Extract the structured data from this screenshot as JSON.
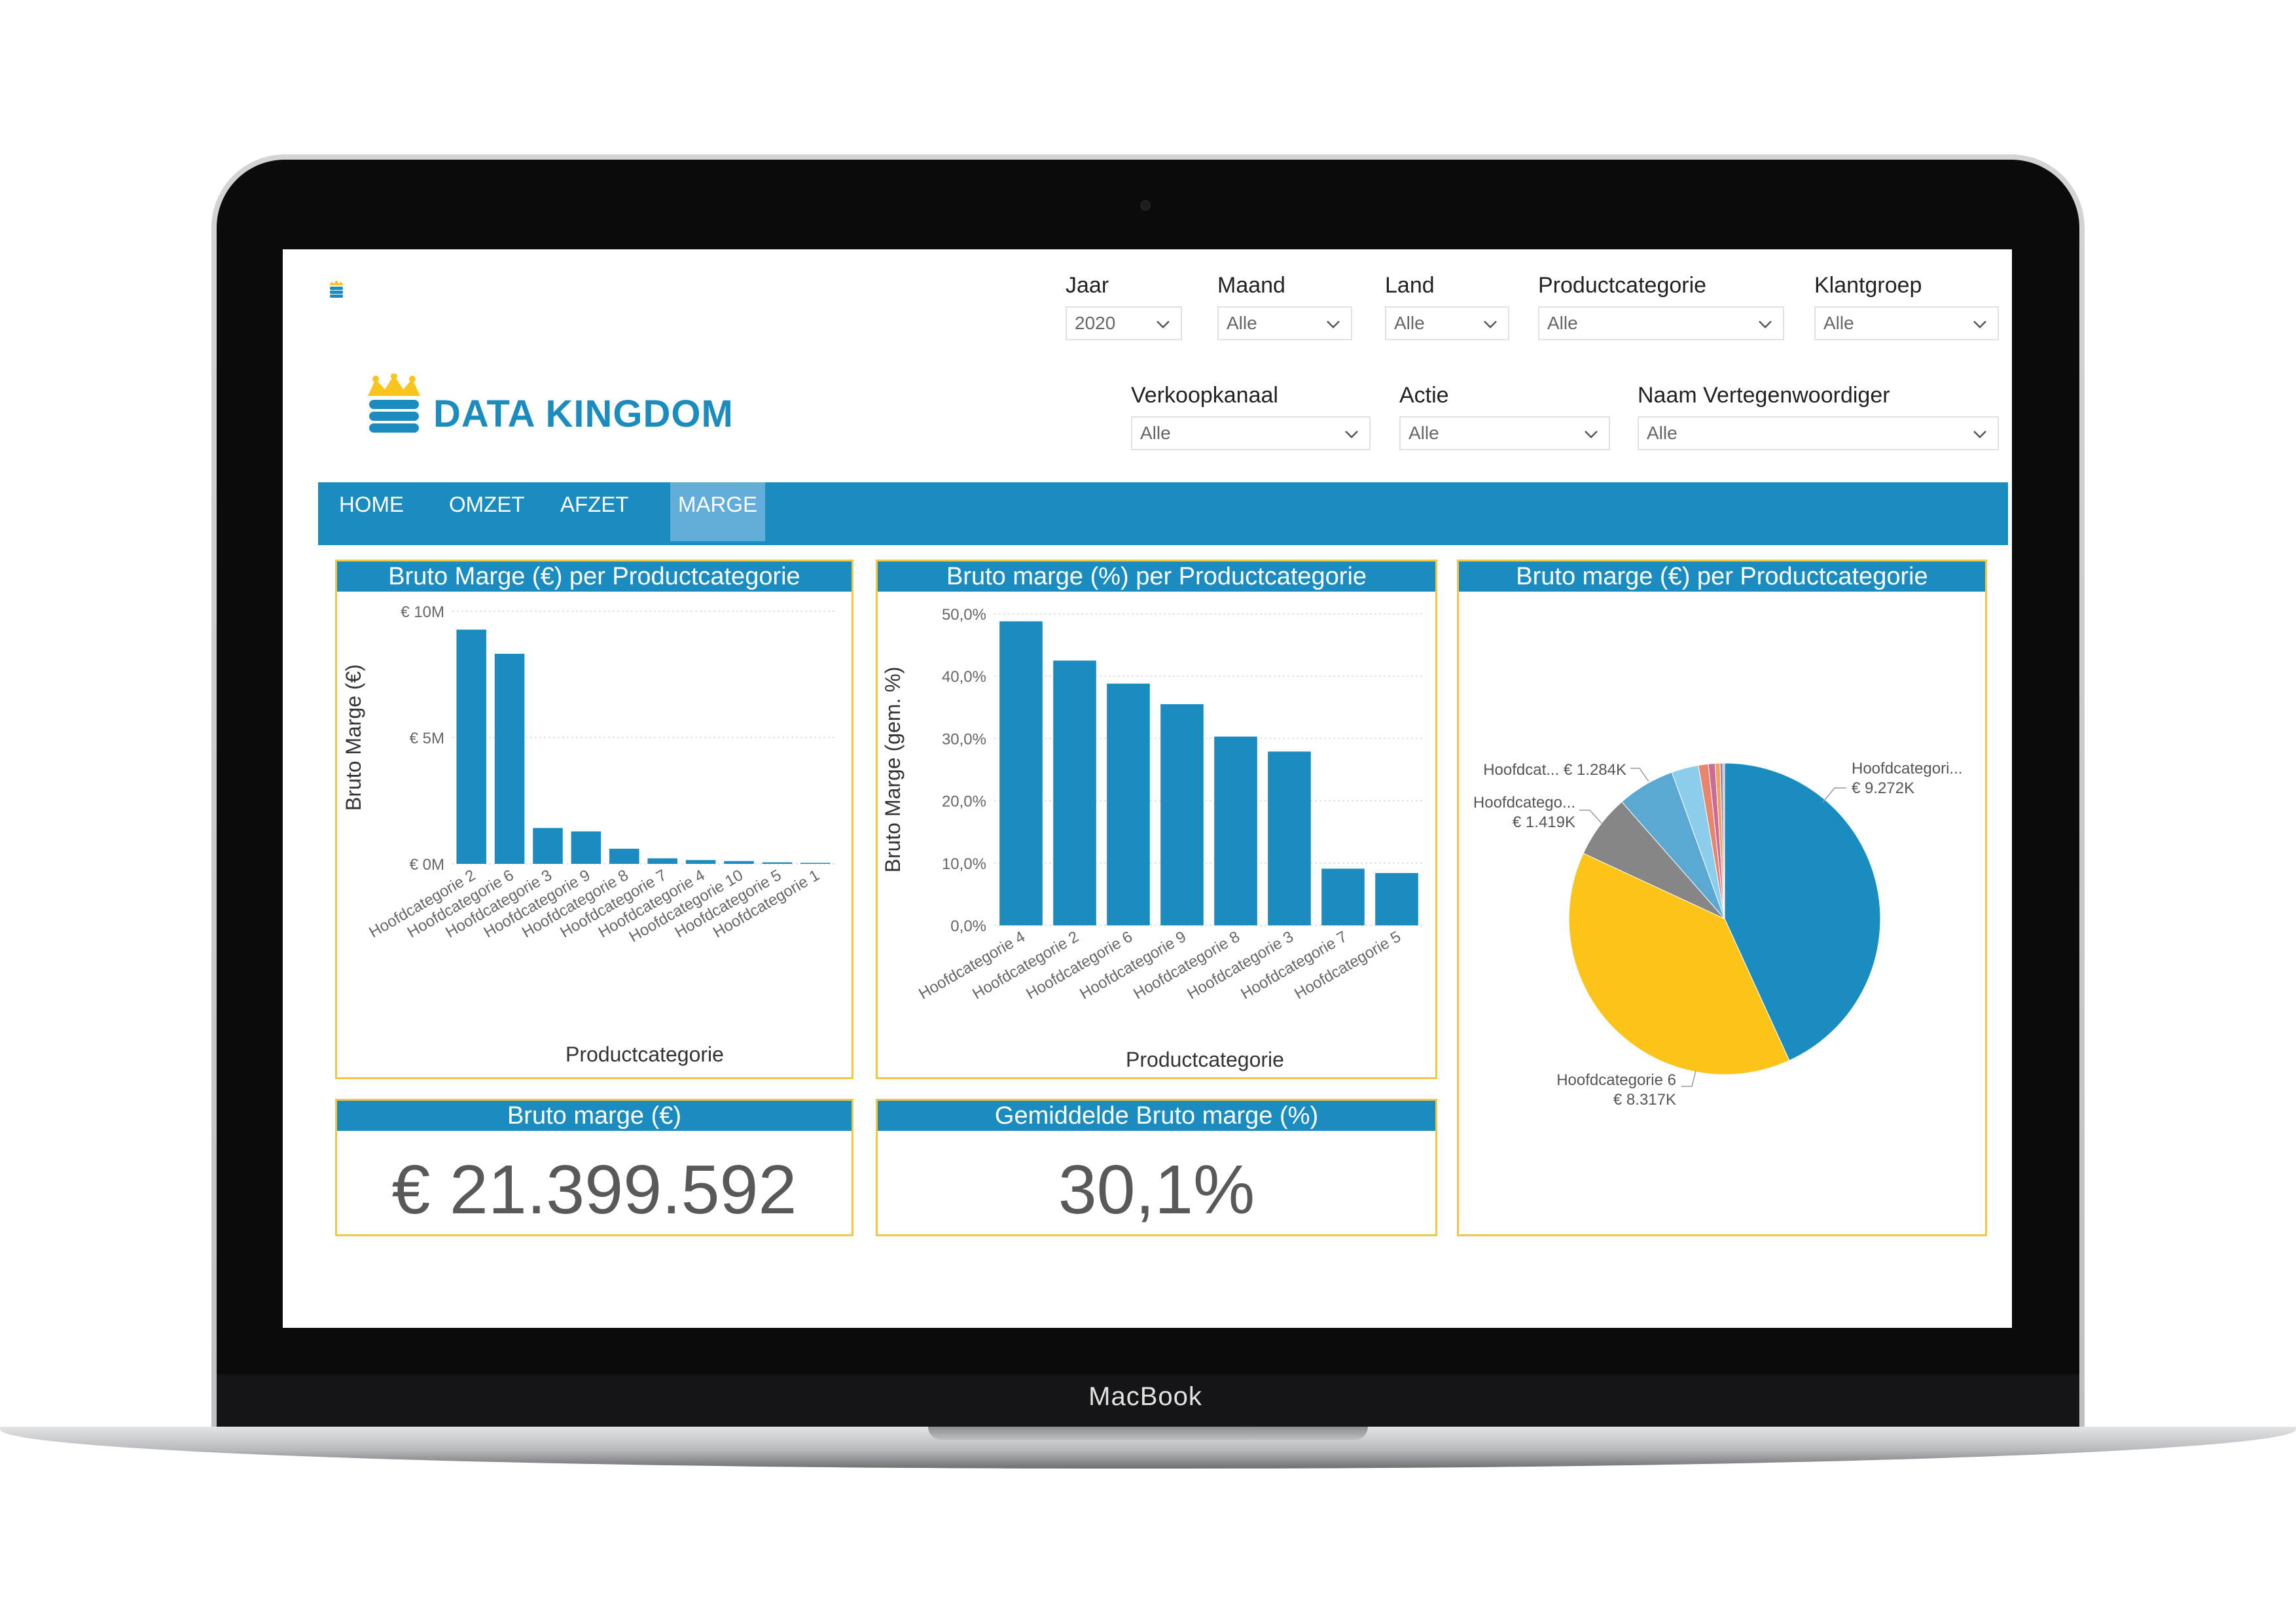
{
  "device": {
    "label": "MacBook"
  },
  "brand": {
    "name": "DATA KINGDOM",
    "logo_icon": "crown-database-icon",
    "color": "#1a8cc0"
  },
  "filters": {
    "jaar": {
      "label": "Jaar",
      "value": "2020"
    },
    "maand": {
      "label": "Maand",
      "value": "Alle"
    },
    "land": {
      "label": "Land",
      "value": "Alle"
    },
    "productcategorie": {
      "label": "Productcategorie",
      "value": "Alle"
    },
    "klantgroep": {
      "label": "Klantgroep",
      "value": "Alle"
    },
    "verkoopkanaal": {
      "label": "Verkoopkanaal",
      "value": "Alle"
    },
    "actie": {
      "label": "Actie",
      "value": "Alle"
    },
    "vertegenwoordiger": {
      "label": "Naam Vertegenwoordiger",
      "value": "Alle"
    }
  },
  "nav": {
    "home": "HOME",
    "omzet": "OMZET",
    "afzet": "AFZET",
    "marge": "MARGE",
    "active": "marge"
  },
  "colors": {
    "primary": "#1a8cc0",
    "panel_border": "#f2c744",
    "nav_active": "#63addb"
  },
  "kpis": {
    "bruto_marge": {
      "title": "Bruto marge (€)",
      "value": "€ 21.399.592"
    },
    "gem_bruto_marge": {
      "title": "Gemiddelde Bruto marge (%)",
      "value": "30,1%"
    }
  },
  "chart_data": [
    {
      "id": "bar_abs",
      "type": "bar",
      "title": "Bruto Marge (€) per Productcategorie",
      "xlabel": "Productcategorie",
      "ylabel": "Bruto Marge (€)",
      "ylim": [
        0,
        10000000
      ],
      "yticks": [
        {
          "value": 0,
          "label": "€ 0M"
        },
        {
          "value": 5000000,
          "label": "€ 5M"
        },
        {
          "value": 10000000,
          "label": "€ 10M"
        }
      ],
      "grid": true,
      "categories": [
        "Hoofdcategorie 2",
        "Hoofdcategorie 6",
        "Hoofdcategorie 3",
        "Hoofdcategorie 9",
        "Hoofdcategorie 8",
        "Hoofdcategorie 7",
        "Hoofdcategorie 4",
        "Hoofdcategorie 10",
        "Hoofdcategorie 5",
        "Hoofdcategorie 1"
      ],
      "values": [
        9272000,
        8317000,
        1419000,
        1284000,
        600000,
        220000,
        150000,
        110000,
        60000,
        40000
      ],
      "color": "#1a8cc0"
    },
    {
      "id": "bar_pct",
      "type": "bar",
      "title": "Bruto marge (%) per Productcategorie",
      "xlabel": "Productcategorie",
      "ylabel": "Bruto Marge (gem. %)",
      "ylim": [
        0,
        50
      ],
      "yticks": [
        {
          "value": 0,
          "label": "0,0%"
        },
        {
          "value": 10,
          "label": "10,0%"
        },
        {
          "value": 20,
          "label": "20,0%"
        },
        {
          "value": 30,
          "label": "30,0%"
        },
        {
          "value": 40,
          "label": "40,0%"
        },
        {
          "value": 50,
          "label": "50,0%"
        }
      ],
      "grid": true,
      "categories": [
        "Hoofdcategorie 4",
        "Hoofdcategorie 2",
        "Hoofdcategorie 6",
        "Hoofdcategorie 9",
        "Hoofdcategorie 8",
        "Hoofdcategorie 3",
        "Hoofdcategorie 7",
        "Hoofdcategorie 5"
      ],
      "values": [
        48.8,
        42.5,
        38.8,
        35.5,
        30.3,
        27.9,
        9.1,
        8.4
      ],
      "color": "#1a8cc0"
    },
    {
      "id": "pie",
      "type": "pie",
      "title": "Bruto marge (€) per Productcategorie",
      "slices": [
        {
          "value": 9272,
          "color": "#1a8cc0"
        },
        {
          "value": 8317,
          "color": "#fcc419"
        },
        {
          "value": 1419,
          "color": "#868686"
        },
        {
          "value": 1284,
          "color": "#5ba9d2"
        },
        {
          "value": 600,
          "color": "#8dcdec"
        },
        {
          "value": 220,
          "color": "#e8866d"
        },
        {
          "value": 150,
          "color": "#c86d99"
        },
        {
          "value": 110,
          "color": "#f0a15a"
        },
        {
          "value": 60,
          "color": "#8c80b8"
        },
        {
          "value": 40,
          "color": "#b4b4b4"
        }
      ],
      "labels": [
        {
          "line1": "Hoofdcategori...",
          "line2": "€ 9.272K"
        },
        {
          "line1": "Hoofdcategorie 6",
          "line2": "€ 8.317K"
        },
        {
          "line1": "Hoofdcatego...",
          "line2": "€ 1.419K"
        },
        {
          "line1": "Hoofdcat... € 1.284K"
        }
      ]
    }
  ]
}
